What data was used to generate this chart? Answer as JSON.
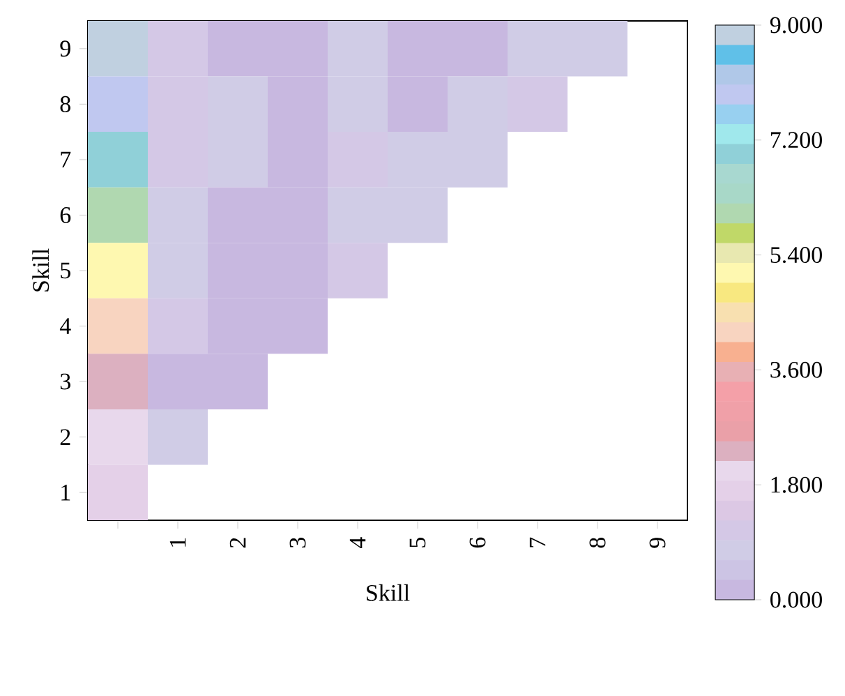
{
  "chart_data": {
    "type": "heatmap",
    "xlabel": "Skill",
    "ylabel": "Skill",
    "categories": [
      null,
      "1",
      "2",
      "3",
      "4",
      "5",
      "6",
      "7",
      "8",
      "9"
    ],
    "y_categories": [
      "9",
      "8",
      "7",
      "6",
      "5",
      "4",
      "3",
      "2",
      "1"
    ],
    "cells": [
      [
        8.8,
        1.0,
        0.2,
        0.2,
        0.8,
        0.2,
        0.2,
        0.8,
        0.8,
        null
      ],
      [
        8.0,
        1.2,
        0.8,
        0.2,
        0.8,
        0.2,
        0.8,
        1.2,
        null,
        null
      ],
      [
        7.0,
        1.2,
        0.8,
        0.2,
        1.2,
        0.8,
        0.8,
        null,
        null,
        null
      ],
      [
        6.2,
        0.8,
        0.2,
        0.2,
        0.8,
        0.8,
        null,
        null,
        null,
        null
      ],
      [
        5.0,
        0.8,
        0.2,
        0.2,
        1.2,
        null,
        null,
        null,
        null,
        null
      ],
      [
        4.2,
        1.2,
        0.2,
        0.2,
        null,
        null,
        null,
        null,
        null,
        null
      ],
      [
        2.2,
        0.2,
        0.2,
        null,
        null,
        null,
        null,
        null,
        null,
        null
      ],
      [
        2.0,
        0.8,
        null,
        null,
        null,
        null,
        null,
        null,
        null,
        null
      ],
      [
        1.6,
        null,
        null,
        null,
        null,
        null,
        null,
        null,
        null,
        null
      ]
    ],
    "clim": [
      0,
      9
    ],
    "cticks": [
      {
        "value": 0,
        "label": "0.000"
      },
      {
        "value": 1.8,
        "label": "1.800"
      },
      {
        "value": 3.6,
        "label": "3.600"
      },
      {
        "value": 5.4,
        "label": "5.400"
      },
      {
        "value": 7.2,
        "label": "7.200"
      },
      {
        "value": 9,
        "label": "9.000"
      }
    ]
  }
}
